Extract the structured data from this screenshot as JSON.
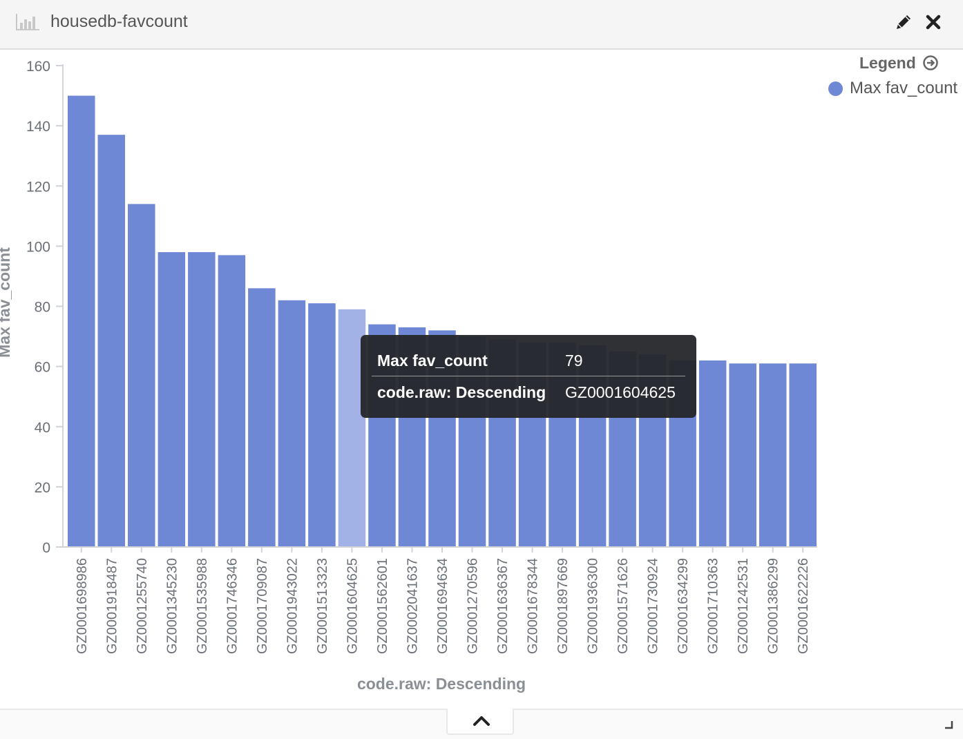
{
  "header": {
    "title": "housedb-favcount",
    "icons": {
      "visualization": "bar-chart-icon",
      "edit": "pencil-icon",
      "close": "close-icon"
    }
  },
  "legend": {
    "title": "Legend",
    "toggle_icon": "arrow-circle-right-icon",
    "items": [
      {
        "label": "Max fav_count",
        "color": "#6f88d6"
      }
    ]
  },
  "tooltip": {
    "rows": [
      {
        "key": "Max fav_count",
        "value": "79"
      },
      {
        "key": "code.raw: Descending",
        "value": "GZ0001604625"
      }
    ]
  },
  "footer": {
    "collapse_icon": "chevron-up-icon",
    "resize_icon": "resize-handle-icon"
  },
  "chart_data": {
    "type": "bar",
    "title": "",
    "xlabel": "code.raw: Descending",
    "ylabel": "Max fav_count",
    "ylim": [
      0,
      160
    ],
    "yticks": [
      0,
      20,
      40,
      60,
      80,
      100,
      120,
      140,
      160
    ],
    "grid": false,
    "legend_position": "top-right",
    "bar_color": "#6f88d6",
    "highlight_color": "#a2b1e6",
    "highlighted_category": "GZ0001604625",
    "categories": [
      "GZ0001698986",
      "GZ0001918487",
      "GZ0001255740",
      "GZ0001345230",
      "GZ0001535988",
      "GZ0001746346",
      "GZ0001709087",
      "GZ0001943022",
      "GZ0001513323",
      "GZ0001604625",
      "GZ0001562601",
      "GZ0002041637",
      "GZ0001694634",
      "GZ0001270596",
      "GZ0001636367",
      "GZ0001678344",
      "GZ0001897669",
      "GZ0001936300",
      "GZ0001571626",
      "GZ0001730924",
      "GZ0001634299",
      "GZ0001710363",
      "GZ0001242531",
      "GZ0001386299",
      "GZ0001622226"
    ],
    "series": [
      {
        "name": "Max fav_count",
        "values": [
          150,
          137,
          114,
          98,
          98,
          97,
          86,
          82,
          81,
          79,
          74,
          73,
          72,
          70,
          69,
          68,
          68,
          67,
          65,
          64,
          62,
          62,
          61,
          61,
          61
        ]
      }
    ]
  }
}
